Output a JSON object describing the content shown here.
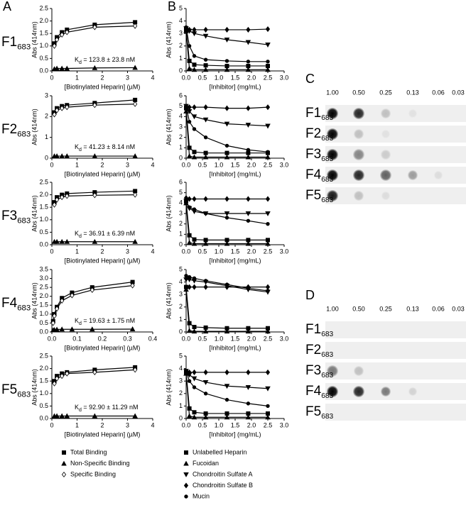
{
  "panel_labels": [
    "A",
    "B"
  ],
  "chart_data": [
    {
      "type": "scatter",
      "label": "F1",
      "label_sub": "683",
      "annotation_symbol": "K",
      "annotation_sub": "d",
      "annotation": " = 123.8 ± 23.8 nM",
      "xlabel": "[Biotinylated Heparin] (µM)",
      "ylabel": "Abs (414nm)",
      "xlim": [
        0,
        4
      ],
      "xticks": [
        0,
        1,
        2,
        3,
        4
      ],
      "ylim": [
        0,
        2.5
      ],
      "yticks": [
        {
          "value": 0,
          "label": "0.0"
        },
        0.5,
        {
          "value": 1,
          "label": "1.0"
        },
        1.5,
        {
          "value": 2,
          "label": "2.0"
        },
        2.5
      ],
      "x": [
        0.1,
        0.2,
        0.4,
        0.6,
        1.7,
        3.3
      ],
      "series": [
        {
          "name": "Total Binding",
          "marker": "square",
          "color": "#000000",
          "values": [
            1.1,
            1.35,
            1.55,
            1.65,
            1.85,
            1.95
          ]
        },
        {
          "name": "Non-Specific Binding",
          "marker": "triangle",
          "color": "#000000",
          "values": [
            0.08,
            0.1,
            0.1,
            0.1,
            0.12,
            0.13
          ]
        },
        {
          "name": "Specific Binding",
          "marker": "open-diamond",
          "color": "#000000",
          "values": [
            1.0,
            1.25,
            1.45,
            1.55,
            1.75,
            1.8
          ]
        }
      ]
    },
    {
      "type": "scatter",
      "label": "F2",
      "label_sub": "683",
      "annotation_symbol": "K",
      "annotation_sub": "d",
      "annotation": " = 41.23 ± 8.14 nM",
      "xlabel": "[Biotinylated Heparin] (µM)",
      "ylabel": "Abs (414nm)",
      "xlim": [
        0,
        4
      ],
      "xticks": [
        0,
        1,
        2,
        3,
        4
      ],
      "ylim": [
        0,
        3
      ],
      "yticks": [
        0,
        1,
        2,
        3
      ],
      "x": [
        0.1,
        0.2,
        0.4,
        0.6,
        1.7,
        3.3
      ],
      "series": [
        {
          "name": "Total Binding",
          "marker": "square",
          "color": "#000000",
          "values": [
            2.2,
            2.4,
            2.5,
            2.55,
            2.65,
            2.8
          ]
        },
        {
          "name": "Non-Specific Binding",
          "marker": "triangle",
          "color": "#000000",
          "values": [
            0.1,
            0.1,
            0.1,
            0.1,
            0.1,
            0.1
          ]
        },
        {
          "name": "Specific Binding",
          "marker": "open-diamond",
          "color": "#000000",
          "values": [
            2.1,
            2.3,
            2.4,
            2.45,
            2.55,
            2.6
          ]
        }
      ]
    },
    {
      "type": "scatter",
      "label": "F3",
      "label_sub": "683",
      "annotation_symbol": "K",
      "annotation_sub": "d",
      "annotation": " = 36.91 ± 6.39 nM",
      "xlabel": "[Biotinylated Heparin] (µM)",
      "ylabel": "Abs (414nm)",
      "xlim": [
        0,
        4
      ],
      "xticks": [
        0,
        1,
        2,
        3,
        4
      ],
      "ylim": [
        0,
        2.5
      ],
      "yticks": [
        {
          "value": 0,
          "label": "0.0"
        },
        0.5,
        {
          "value": 1,
          "label": "1.0"
        },
        1.5,
        {
          "value": 2,
          "label": "2.0"
        },
        2.5
      ],
      "x": [
        0.1,
        0.2,
        0.4,
        0.6,
        1.7,
        3.3
      ],
      "series": [
        {
          "name": "Total Binding",
          "marker": "square",
          "color": "#000000",
          "values": [
            1.7,
            1.9,
            2.0,
            2.05,
            2.1,
            2.15
          ]
        },
        {
          "name": "Non-Specific Binding",
          "marker": "triangle",
          "color": "#000000",
          "values": [
            0.12,
            0.12,
            0.12,
            0.12,
            0.12,
            0.12
          ]
        },
        {
          "name": "Specific Binding",
          "marker": "open-diamond",
          "color": "#000000",
          "values": [
            1.6,
            1.8,
            1.9,
            1.95,
            1.98,
            2.0
          ]
        }
      ]
    },
    {
      "type": "scatter",
      "label": "F4",
      "label_sub": "683",
      "annotation_symbol": "K",
      "annotation_sub": "d",
      "annotation": " = 19.63 ± 1.75 nM",
      "xlabel": "[Biotinylated Heparin] (µM)",
      "ylabel": "Abs (414nm)",
      "xlim": [
        0,
        0.4
      ],
      "xticks": [
        {
          "value": 0,
          "label": "0.0"
        },
        0.1,
        0.2,
        0.3,
        0.4
      ],
      "ylim": [
        0,
        3.5
      ],
      "yticks": [
        {
          "value": 0,
          "label": "0.0"
        },
        0.5,
        {
          "value": 1,
          "label": "1.0"
        },
        1.5,
        {
          "value": 2,
          "label": "2.0"
        },
        2.5,
        {
          "value": 3,
          "label": "3.0"
        },
        3.5
      ],
      "x": [
        0.005,
        0.01,
        0.02,
        0.04,
        0.08,
        0.16,
        0.32
      ],
      "series": [
        {
          "name": "Total Binding",
          "marker": "square",
          "color": "#000000",
          "values": [
            0.6,
            1.0,
            1.4,
            1.9,
            2.2,
            2.5,
            2.8
          ]
        },
        {
          "name": "Non-Specific Binding",
          "marker": "triangle",
          "color": "#000000",
          "values": [
            0.1,
            0.12,
            0.14,
            0.15,
            0.15,
            0.15,
            0.16
          ]
        },
        {
          "name": "Specific Binding",
          "marker": "open-diamond",
          "color": "#000000",
          "values": [
            0.5,
            0.9,
            1.3,
            1.75,
            2.05,
            2.35,
            2.6
          ]
        }
      ]
    },
    {
      "type": "scatter",
      "label": "F5",
      "label_sub": "683",
      "annotation_symbol": "K",
      "annotation_sub": "d",
      "annotation": " = 92.90 ± 11.29 nM",
      "xlabel": "[Biotinylated Heparin] (µM)",
      "ylabel": "Abs (414nm)",
      "xlim": [
        0,
        4
      ],
      "xticks": [
        0,
        1,
        2,
        3,
        4
      ],
      "ylim": [
        0,
        2.5
      ],
      "yticks": [
        {
          "value": 0,
          "label": "0.0"
        },
        0.5,
        {
          "value": 1,
          "label": "1.0"
        },
        1.5,
        {
          "value": 2,
          "label": "2.0"
        },
        2.5
      ],
      "x": [
        0.1,
        0.2,
        0.4,
        0.6,
        1.7,
        3.3
      ],
      "series": [
        {
          "name": "Total Binding",
          "marker": "square",
          "color": "#000000",
          "values": [
            1.5,
            1.7,
            1.8,
            1.85,
            1.95,
            2.05
          ]
        },
        {
          "name": "Non-Specific Binding",
          "marker": "triangle",
          "color": "#000000",
          "values": [
            0.1,
            0.1,
            0.1,
            0.1,
            0.1,
            0.1
          ]
        },
        {
          "name": "Specific Binding",
          "marker": "open-diamond",
          "color": "#000000",
          "values": [
            1.4,
            1.6,
            1.7,
            1.8,
            1.85,
            1.95
          ]
        }
      ]
    },
    {
      "type": "scatter",
      "xlabel": "[Inhibitor] (mg/mL)",
      "ylabel": "Abs (414nm)",
      "xlim": [
        0,
        3
      ],
      "xticks": [
        {
          "value": 0,
          "label": "0.0"
        },
        0.5,
        {
          "value": 1,
          "label": "1.0"
        },
        1.5,
        {
          "value": 2,
          "label": "2.0"
        },
        2.5,
        {
          "value": 3,
          "label": "3.0"
        }
      ],
      "ylim": [
        0,
        5
      ],
      "yticks": [
        0,
        1,
        2,
        3,
        4,
        5
      ],
      "x": [
        0,
        0.1,
        0.25,
        0.6,
        1.25,
        1.9,
        2.5
      ],
      "series": [
        {
          "name": "Unlabelled Heparin",
          "marker": "square",
          "color": "#000000",
          "values": [
            3.3,
            0.8,
            0.5,
            0.45,
            0.4,
            0.4,
            0.4
          ]
        },
        {
          "name": "Fucoidan",
          "marker": "triangle",
          "color": "#000000",
          "values": [
            3.2,
            0.2,
            0.1,
            0.1,
            0.1,
            0.1,
            0.1
          ]
        },
        {
          "name": "Chondroitin Sulfate A",
          "marker": "triangle-down",
          "color": "#000000",
          "values": [
            3.4,
            3.2,
            3.0,
            2.8,
            2.5,
            2.3,
            2.1
          ]
        },
        {
          "name": "Chondroitin Sulfate B",
          "marker": "diamond",
          "color": "#000000",
          "values": [
            3.3,
            3.3,
            3.3,
            3.3,
            3.3,
            3.3,
            3.35
          ]
        },
        {
          "name": "Mucin",
          "marker": "circle",
          "color": "#000000",
          "values": [
            3.5,
            2.0,
            1.2,
            0.9,
            0.8,
            0.75,
            0.75
          ]
        }
      ]
    },
    {
      "type": "scatter",
      "xlabel": "[Inhibitor] (mg/mL)",
      "ylabel": "Abs (414nm)",
      "xlim": [
        0,
        3
      ],
      "xticks": [
        {
          "value": 0,
          "label": "0.0"
        },
        0.5,
        {
          "value": 1,
          "label": "1.0"
        },
        1.5,
        {
          "value": 2,
          "label": "2.0"
        },
        2.5,
        {
          "value": 3,
          "label": "3.0"
        }
      ],
      "ylim": [
        0,
        6
      ],
      "yticks": [
        0,
        1,
        2,
        3,
        4,
        5,
        6
      ],
      "x": [
        0,
        0.1,
        0.25,
        0.6,
        1.25,
        1.9,
        2.5
      ],
      "series": [
        {
          "name": "Unlabelled Heparin",
          "marker": "square",
          "color": "#000000",
          "values": [
            4.8,
            1.0,
            0.6,
            0.5,
            0.5,
            0.5,
            0.5
          ]
        },
        {
          "name": "Fucoidan",
          "marker": "triangle",
          "color": "#000000",
          "values": [
            4.5,
            0.2,
            0.1,
            0.1,
            0.1,
            0.1,
            0.1
          ]
        },
        {
          "name": "Chondroitin Sulfate A",
          "marker": "triangle-down",
          "color": "#000000",
          "values": [
            5.0,
            4.5,
            4.0,
            3.7,
            3.3,
            3.2,
            3.1
          ]
        },
        {
          "name": "Chondroitin Sulfate B",
          "marker": "diamond",
          "color": "#000000",
          "values": [
            5.0,
            4.9,
            4.9,
            4.9,
            4.8,
            4.8,
            4.9
          ]
        },
        {
          "name": "Mucin",
          "marker": "circle",
          "color": "#000000",
          "values": [
            5.0,
            3.5,
            2.8,
            2.0,
            1.2,
            0.8,
            0.6
          ]
        }
      ]
    },
    {
      "type": "scatter",
      "xlabel": "[Inhibitor] (mg/mL)",
      "ylabel": "Abs (414nm)",
      "xlim": [
        0,
        3
      ],
      "xticks": [
        {
          "value": 0,
          "label": "0.0"
        },
        0.5,
        {
          "value": 1,
          "label": "1.0"
        },
        1.5,
        {
          "value": 2,
          "label": "2.0"
        },
        2.5,
        {
          "value": 3,
          "label": "3.0"
        }
      ],
      "ylim": [
        0,
        6
      ],
      "yticks": [
        0,
        1,
        2,
        3,
        4,
        5,
        6
      ],
      "x": [
        0,
        0.1,
        0.25,
        0.6,
        1.25,
        1.9,
        2.5
      ],
      "series": [
        {
          "name": "Unlabelled Heparin",
          "marker": "square",
          "color": "#000000",
          "values": [
            4.2,
            0.9,
            0.5,
            0.45,
            0.45,
            0.45,
            0.45
          ]
        },
        {
          "name": "Fucoidan",
          "marker": "triangle",
          "color": "#000000",
          "values": [
            4.0,
            0.2,
            0.1,
            0.1,
            0.1,
            0.1,
            0.1
          ]
        },
        {
          "name": "Chondroitin Sulfate A",
          "marker": "triangle-down",
          "color": "#000000",
          "values": [
            4.2,
            3.5,
            3.2,
            3.0,
            3.0,
            3.0,
            3.0
          ]
        },
        {
          "name": "Chondroitin Sulfate B",
          "marker": "diamond",
          "color": "#000000",
          "values": [
            4.5,
            4.4,
            4.4,
            4.4,
            4.4,
            4.4,
            4.4
          ]
        },
        {
          "name": "Mucin",
          "marker": "circle",
          "color": "#000000",
          "values": [
            4.0,
            3.6,
            3.4,
            3.0,
            2.6,
            2.3,
            2.0
          ]
        }
      ]
    },
    {
      "type": "scatter",
      "xlabel": "[Inhibitor] (mg/mL)",
      "ylabel": "Abs (414nm)",
      "xlim": [
        0,
        3
      ],
      "xticks": [
        {
          "value": 0,
          "label": "0.0"
        },
        0.5,
        {
          "value": 1,
          "label": "1.0"
        },
        1.5,
        {
          "value": 2,
          "label": "2.0"
        },
        2.5,
        {
          "value": 3,
          "label": "3.0"
        }
      ],
      "ylim": [
        0,
        5
      ],
      "yticks": [
        0,
        1,
        2,
        3,
        4,
        5
      ],
      "x": [
        0,
        0.1,
        0.25,
        0.6,
        1.25,
        1.9,
        2.5
      ],
      "series": [
        {
          "name": "Unlabelled Heparin",
          "marker": "square",
          "color": "#000000",
          "values": [
            3.6,
            0.7,
            0.4,
            0.35,
            0.3,
            0.3,
            0.3
          ]
        },
        {
          "name": "Fucoidan",
          "marker": "triangle",
          "color": "#000000",
          "values": [
            3.4,
            0.1,
            0.05,
            0.05,
            0.05,
            0.05,
            0.05
          ]
        },
        {
          "name": "Chondroitin Sulfate A",
          "marker": "triangle-down",
          "color": "#000000",
          "values": [
            4.2,
            4.2,
            4.1,
            4.0,
            3.7,
            3.4,
            3.2
          ]
        },
        {
          "name": "Chondroitin Sulfate B",
          "marker": "diamond",
          "color": "#000000",
          "values": [
            3.6,
            3.6,
            3.6,
            3.6,
            3.6,
            3.6,
            3.6
          ]
        },
        {
          "name": "Mucin",
          "marker": "circle",
          "color": "#000000",
          "values": [
            4.5,
            4.4,
            4.3,
            4.1,
            3.8,
            3.5,
            3.3
          ]
        }
      ]
    },
    {
      "type": "scatter",
      "xlabel": "[Inhibitor] (mg/mL)",
      "ylabel": "Abs (414nm)",
      "xlim": [
        0,
        3
      ],
      "xticks": [
        {
          "value": 0,
          "label": "0.0"
        },
        0.5,
        {
          "value": 1,
          "label": "1.0"
        },
        1.5,
        {
          "value": 2,
          "label": "2.0"
        },
        2.5,
        {
          "value": 3,
          "label": "3.0"
        }
      ],
      "ylim": [
        0,
        5
      ],
      "yticks": [
        0,
        1,
        2,
        3,
        4,
        5
      ],
      "x": [
        0,
        0.1,
        0.25,
        0.6,
        1.25,
        1.9,
        2.5
      ],
      "series": [
        {
          "name": "Unlabelled Heparin",
          "marker": "square",
          "color": "#000000",
          "values": [
            3.7,
            0.8,
            0.5,
            0.4,
            0.4,
            0.4,
            0.4
          ]
        },
        {
          "name": "Fucoidan",
          "marker": "triangle",
          "color": "#000000",
          "values": [
            3.6,
            0.2,
            0.1,
            0.1,
            0.1,
            0.1,
            0.1
          ]
        },
        {
          "name": "Chondroitin Sulfate A",
          "marker": "triangle-down",
          "color": "#000000",
          "values": [
            3.8,
            3.5,
            3.2,
            2.9,
            2.6,
            2.5,
            2.4
          ]
        },
        {
          "name": "Chondroitin Sulfate B",
          "marker": "diamond",
          "color": "#000000",
          "values": [
            3.7,
            3.7,
            3.7,
            3.7,
            3.7,
            3.7,
            3.7
          ]
        },
        {
          "name": "Mucin",
          "marker": "circle",
          "color": "#000000",
          "values": [
            3.8,
            3.0,
            2.5,
            2.0,
            1.5,
            1.2,
            1.0
          ]
        }
      ]
    }
  ],
  "blots": [
    {
      "label": "C",
      "columns": [
        "1.00",
        "0.50",
        "0.25",
        "0.13",
        "0.06",
        "0.03"
      ],
      "rows": [
        {
          "name": "F1",
          "sub": "683"
        },
        {
          "name": "F2",
          "sub": "683"
        },
        {
          "name": "F3",
          "sub": "683"
        },
        {
          "name": "F4",
          "sub": "683"
        },
        {
          "name": "F5",
          "sub": "683"
        }
      ]
    },
    {
      "label": "D",
      "columns": [
        "1.00",
        "0.50",
        "0.25",
        "0.13",
        "0.06",
        "0.03"
      ],
      "rows": [
        {
          "name": "F1",
          "sub": "683"
        },
        {
          "name": "F2",
          "sub": "683"
        },
        {
          "name": "F3",
          "sub": "683"
        },
        {
          "name": "F4",
          "sub": "683"
        },
        {
          "name": "F5",
          "sub": "683"
        }
      ]
    }
  ]
}
